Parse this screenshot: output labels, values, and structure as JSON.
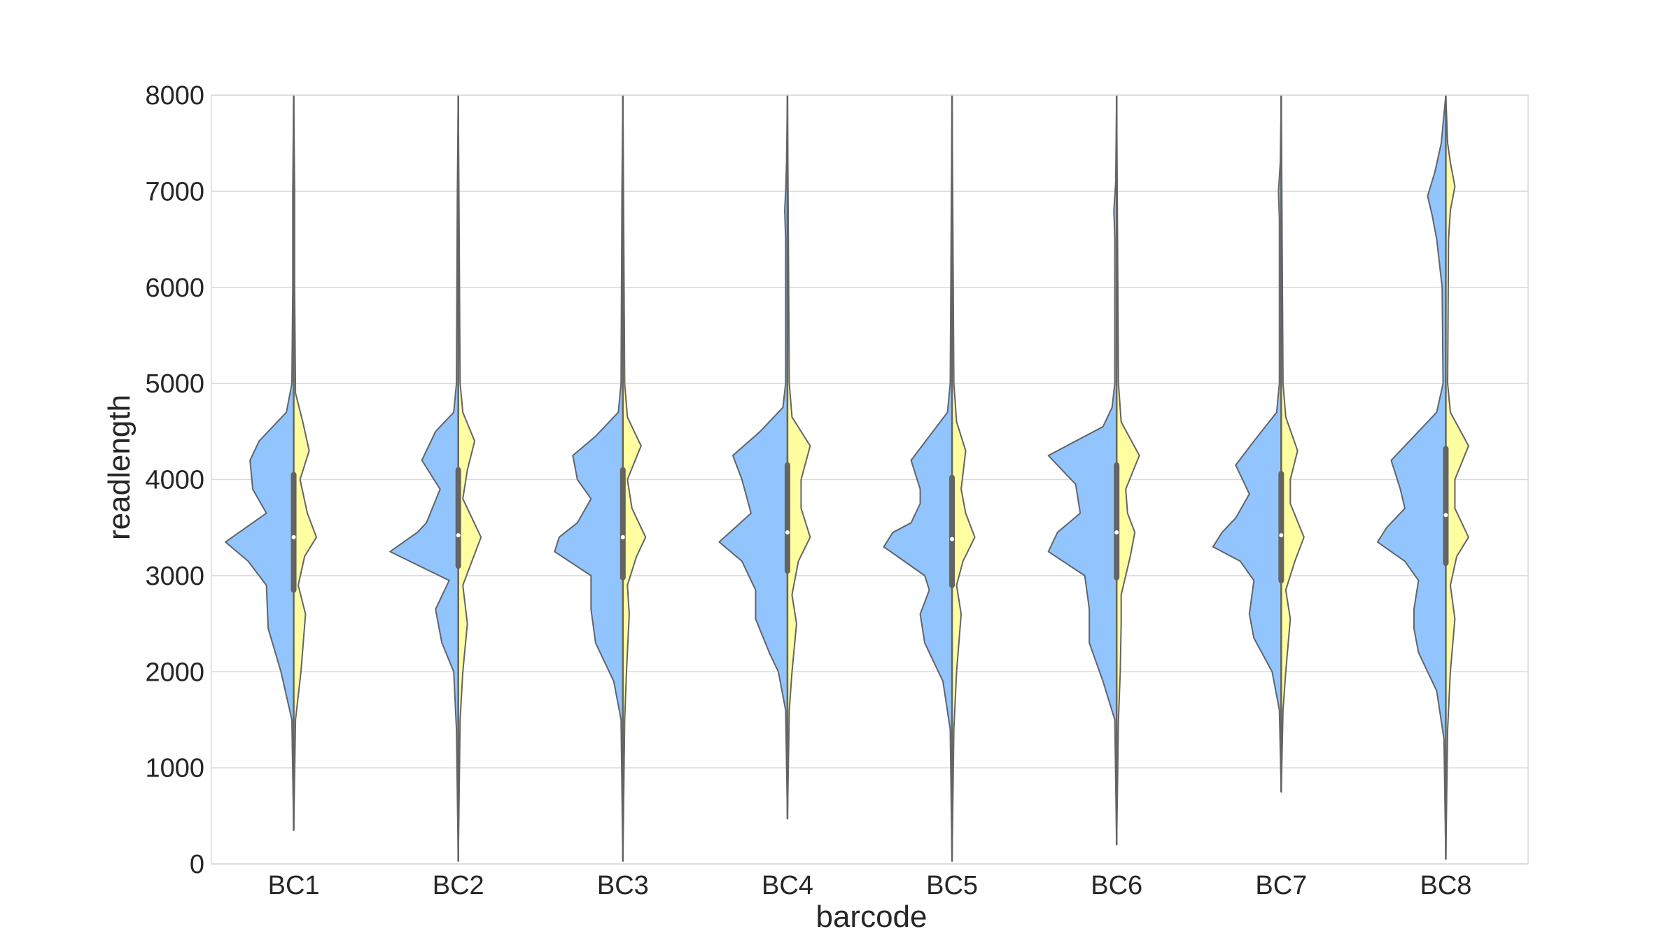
{
  "chart_data": {
    "type": "violin",
    "split": true,
    "xlabel": "barcode",
    "ylabel": "readlength",
    "ylim": [
      0,
      8000
    ],
    "yticks": [
      0,
      1000,
      2000,
      3000,
      4000,
      5000,
      6000,
      7000,
      8000
    ],
    "grid": true,
    "categories": [
      "BC1",
      "BC2",
      "BC3",
      "BC4",
      "BC5",
      "BC6",
      "BC7",
      "BC8"
    ],
    "colors": {
      "left": "#92c5fe",
      "right": "#fefea0",
      "outline": "#646464",
      "grid": "#d9d9d9"
    },
    "violins": [
      {
        "category": "BC1",
        "min": 350,
        "max": 8000,
        "q1": 2850,
        "median": 3400,
        "q3": 4050,
        "left": [
          [
            350,
            0
          ],
          [
            1500,
            0.02
          ],
          [
            2000,
            0.14
          ],
          [
            2450,
            0.28
          ],
          [
            2900,
            0.3
          ],
          [
            3150,
            0.5
          ],
          [
            3350,
            0.75
          ],
          [
            3650,
            0.3
          ],
          [
            3900,
            0.45
          ],
          [
            4200,
            0.48
          ],
          [
            4400,
            0.38
          ],
          [
            4700,
            0.08
          ],
          [
            5000,
            0.02
          ],
          [
            6000,
            0.01
          ],
          [
            7000,
            0.01
          ],
          [
            8000,
            0
          ]
        ],
        "right": [
          [
            350,
            0
          ],
          [
            1500,
            0.02
          ],
          [
            2000,
            0.08
          ],
          [
            2600,
            0.13
          ],
          [
            2900,
            0.05
          ],
          [
            3200,
            0.12
          ],
          [
            3400,
            0.25
          ],
          [
            3650,
            0.15
          ],
          [
            4000,
            0.07
          ],
          [
            4300,
            0.17
          ],
          [
            4600,
            0.1
          ],
          [
            4900,
            0.02
          ],
          [
            6000,
            0.01
          ],
          [
            7000,
            0.01
          ],
          [
            8000,
            0
          ]
        ]
      },
      {
        "category": "BC2",
        "min": 30,
        "max": 8000,
        "q1": 3100,
        "median": 3420,
        "q3": 4100,
        "left": [
          [
            30,
            0
          ],
          [
            1400,
            0.02
          ],
          [
            2000,
            0.05
          ],
          [
            2300,
            0.18
          ],
          [
            2650,
            0.25
          ],
          [
            2950,
            0.1
          ],
          [
            3250,
            0.75
          ],
          [
            3450,
            0.45
          ],
          [
            3550,
            0.35
          ],
          [
            3900,
            0.2
          ],
          [
            4200,
            0.4
          ],
          [
            4500,
            0.25
          ],
          [
            4700,
            0.05
          ],
          [
            5000,
            0.02
          ],
          [
            7000,
            0.01
          ],
          [
            8000,
            0
          ]
        ],
        "right": [
          [
            30,
            0
          ],
          [
            1500,
            0.02
          ],
          [
            2000,
            0.05
          ],
          [
            2500,
            0.1
          ],
          [
            2900,
            0.05
          ],
          [
            3150,
            0.15
          ],
          [
            3400,
            0.25
          ],
          [
            3800,
            0.05
          ],
          [
            4100,
            0.1
          ],
          [
            4400,
            0.18
          ],
          [
            4700,
            0.05
          ],
          [
            5000,
            0.02
          ],
          [
            8000,
            0
          ]
        ]
      },
      {
        "category": "BC3",
        "min": 30,
        "max": 8000,
        "q1": 2980,
        "median": 3400,
        "q3": 4100,
        "left": [
          [
            30,
            0
          ],
          [
            1500,
            0.02
          ],
          [
            1900,
            0.1
          ],
          [
            2300,
            0.3
          ],
          [
            2650,
            0.35
          ],
          [
            3000,
            0.35
          ],
          [
            3250,
            0.75
          ],
          [
            3400,
            0.7
          ],
          [
            3550,
            0.5
          ],
          [
            3800,
            0.35
          ],
          [
            4000,
            0.5
          ],
          [
            4250,
            0.55
          ],
          [
            4450,
            0.3
          ],
          [
            4700,
            0.05
          ],
          [
            5000,
            0.02
          ],
          [
            7000,
            0.01
          ],
          [
            8000,
            0
          ]
        ],
        "right": [
          [
            30,
            0
          ],
          [
            1500,
            0.02
          ],
          [
            2000,
            0.04
          ],
          [
            2600,
            0.07
          ],
          [
            2900,
            0.05
          ],
          [
            3200,
            0.15
          ],
          [
            3400,
            0.25
          ],
          [
            3700,
            0.1
          ],
          [
            4000,
            0.05
          ],
          [
            4350,
            0.2
          ],
          [
            4650,
            0.05
          ],
          [
            5000,
            0.02
          ],
          [
            8000,
            0
          ]
        ]
      },
      {
        "category": "BC4",
        "min": 470,
        "max": 8000,
        "q1": 3050,
        "median": 3450,
        "q3": 4150,
        "left": [
          [
            470,
            0
          ],
          [
            1600,
            0.02
          ],
          [
            2000,
            0.1
          ],
          [
            2200,
            0.2
          ],
          [
            2550,
            0.35
          ],
          [
            2850,
            0.35
          ],
          [
            3150,
            0.5
          ],
          [
            3350,
            0.75
          ],
          [
            3650,
            0.4
          ],
          [
            4000,
            0.5
          ],
          [
            4250,
            0.6
          ],
          [
            4500,
            0.3
          ],
          [
            4750,
            0.05
          ],
          [
            5000,
            0.02
          ],
          [
            6500,
            0.02
          ],
          [
            6800,
            0.03
          ],
          [
            7000,
            0.02
          ],
          [
            7300,
            0.01
          ],
          [
            8000,
            0
          ]
        ],
        "right": [
          [
            470,
            0
          ],
          [
            1600,
            0.02
          ],
          [
            2000,
            0.05
          ],
          [
            2500,
            0.1
          ],
          [
            2800,
            0.05
          ],
          [
            3150,
            0.12
          ],
          [
            3400,
            0.25
          ],
          [
            3700,
            0.15
          ],
          [
            4000,
            0.15
          ],
          [
            4350,
            0.25
          ],
          [
            4650,
            0.05
          ],
          [
            5000,
            0.02
          ],
          [
            8000,
            0
          ]
        ]
      },
      {
        "category": "BC5",
        "min": 30,
        "max": 8000,
        "q1": 2900,
        "median": 3380,
        "q3": 4020,
        "left": [
          [
            30,
            0
          ],
          [
            1400,
            0.02
          ],
          [
            1900,
            0.1
          ],
          [
            2300,
            0.3
          ],
          [
            2600,
            0.35
          ],
          [
            2850,
            0.25
          ],
          [
            3000,
            0.3
          ],
          [
            3300,
            0.75
          ],
          [
            3450,
            0.65
          ],
          [
            3550,
            0.45
          ],
          [
            3750,
            0.35
          ],
          [
            3900,
            0.35
          ],
          [
            4200,
            0.45
          ],
          [
            4450,
            0.25
          ],
          [
            4700,
            0.05
          ],
          [
            5000,
            0.02
          ],
          [
            8000,
            0
          ]
        ],
        "right": [
          [
            30,
            0
          ],
          [
            1400,
            0.02
          ],
          [
            2000,
            0.05
          ],
          [
            2600,
            0.1
          ],
          [
            2900,
            0.05
          ],
          [
            3150,
            0.12
          ],
          [
            3400,
            0.25
          ],
          [
            3650,
            0.15
          ],
          [
            3900,
            0.1
          ],
          [
            4300,
            0.15
          ],
          [
            4600,
            0.05
          ],
          [
            5000,
            0.02
          ],
          [
            8000,
            0
          ]
        ]
      },
      {
        "category": "BC6",
        "min": 200,
        "max": 8000,
        "q1": 2980,
        "median": 3450,
        "q3": 4150,
        "left": [
          [
            200,
            0
          ],
          [
            1500,
            0.02
          ],
          [
            1900,
            0.15
          ],
          [
            2300,
            0.3
          ],
          [
            2650,
            0.3
          ],
          [
            3000,
            0.35
          ],
          [
            3250,
            0.75
          ],
          [
            3450,
            0.65
          ],
          [
            3650,
            0.4
          ],
          [
            3950,
            0.45
          ],
          [
            4250,
            0.75
          ],
          [
            4550,
            0.15
          ],
          [
            4750,
            0.05
          ],
          [
            5000,
            0.02
          ],
          [
            6500,
            0.02
          ],
          [
            6800,
            0.03
          ],
          [
            7100,
            0.01
          ],
          [
            8000,
            0
          ]
        ],
        "right": [
          [
            200,
            0
          ],
          [
            1500,
            0.02
          ],
          [
            2000,
            0.04
          ],
          [
            2500,
            0.05
          ],
          [
            2800,
            0.05
          ],
          [
            3200,
            0.15
          ],
          [
            3450,
            0.2
          ],
          [
            3650,
            0.12
          ],
          [
            3900,
            0.1
          ],
          [
            4250,
            0.25
          ],
          [
            4600,
            0.05
          ],
          [
            5000,
            0.02
          ],
          [
            8000,
            0
          ]
        ]
      },
      {
        "category": "BC7",
        "min": 750,
        "max": 8000,
        "q1": 2950,
        "median": 3420,
        "q3": 4060,
        "left": [
          [
            750,
            0
          ],
          [
            1600,
            0.02
          ],
          [
            2000,
            0.1
          ],
          [
            2350,
            0.3
          ],
          [
            2600,
            0.35
          ],
          [
            2950,
            0.3
          ],
          [
            3150,
            0.45
          ],
          [
            3300,
            0.75
          ],
          [
            3450,
            0.65
          ],
          [
            3600,
            0.5
          ],
          [
            3850,
            0.35
          ],
          [
            4150,
            0.5
          ],
          [
            4400,
            0.3
          ],
          [
            4700,
            0.05
          ],
          [
            5000,
            0.02
          ],
          [
            6700,
            0.02
          ],
          [
            7000,
            0.03
          ],
          [
            7300,
            0.01
          ],
          [
            8000,
            0
          ]
        ],
        "right": [
          [
            750,
            0
          ],
          [
            1600,
            0.02
          ],
          [
            2000,
            0.05
          ],
          [
            2550,
            0.1
          ],
          [
            2850,
            0.05
          ],
          [
            3150,
            0.15
          ],
          [
            3400,
            0.25
          ],
          [
            3750,
            0.1
          ],
          [
            4000,
            0.1
          ],
          [
            4300,
            0.18
          ],
          [
            4650,
            0.05
          ],
          [
            5000,
            0.02
          ],
          [
            8000,
            0
          ]
        ]
      },
      {
        "category": "BC8",
        "min": 50,
        "max": 8000,
        "q1": 3130,
        "median": 3630,
        "q3": 4320,
        "left": [
          [
            50,
            0
          ],
          [
            1300,
            0.02
          ],
          [
            1800,
            0.1
          ],
          [
            2200,
            0.3
          ],
          [
            2450,
            0.35
          ],
          [
            2650,
            0.35
          ],
          [
            2950,
            0.3
          ],
          [
            3150,
            0.45
          ],
          [
            3350,
            0.75
          ],
          [
            3500,
            0.65
          ],
          [
            3700,
            0.45
          ],
          [
            3900,
            0.5
          ],
          [
            4200,
            0.6
          ],
          [
            4450,
            0.35
          ],
          [
            4700,
            0.1
          ],
          [
            5000,
            0.03
          ],
          [
            6000,
            0.04
          ],
          [
            6500,
            0.1
          ],
          [
            6750,
            0.15
          ],
          [
            6950,
            0.2
          ],
          [
            7200,
            0.12
          ],
          [
            7500,
            0.05
          ],
          [
            7800,
            0.02
          ],
          [
            8000,
            0
          ]
        ],
        "right": [
          [
            50,
            0
          ],
          [
            1400,
            0.02
          ],
          [
            2000,
            0.05
          ],
          [
            2550,
            0.1
          ],
          [
            2900,
            0.05
          ],
          [
            3200,
            0.12
          ],
          [
            3400,
            0.25
          ],
          [
            3700,
            0.1
          ],
          [
            4000,
            0.1
          ],
          [
            4350,
            0.25
          ],
          [
            4700,
            0.05
          ],
          [
            5000,
            0.02
          ],
          [
            6500,
            0.03
          ],
          [
            6800,
            0.05
          ],
          [
            7050,
            0.1
          ],
          [
            7300,
            0.05
          ],
          [
            7500,
            0.02
          ],
          [
            8000,
            0
          ]
        ]
      }
    ]
  }
}
